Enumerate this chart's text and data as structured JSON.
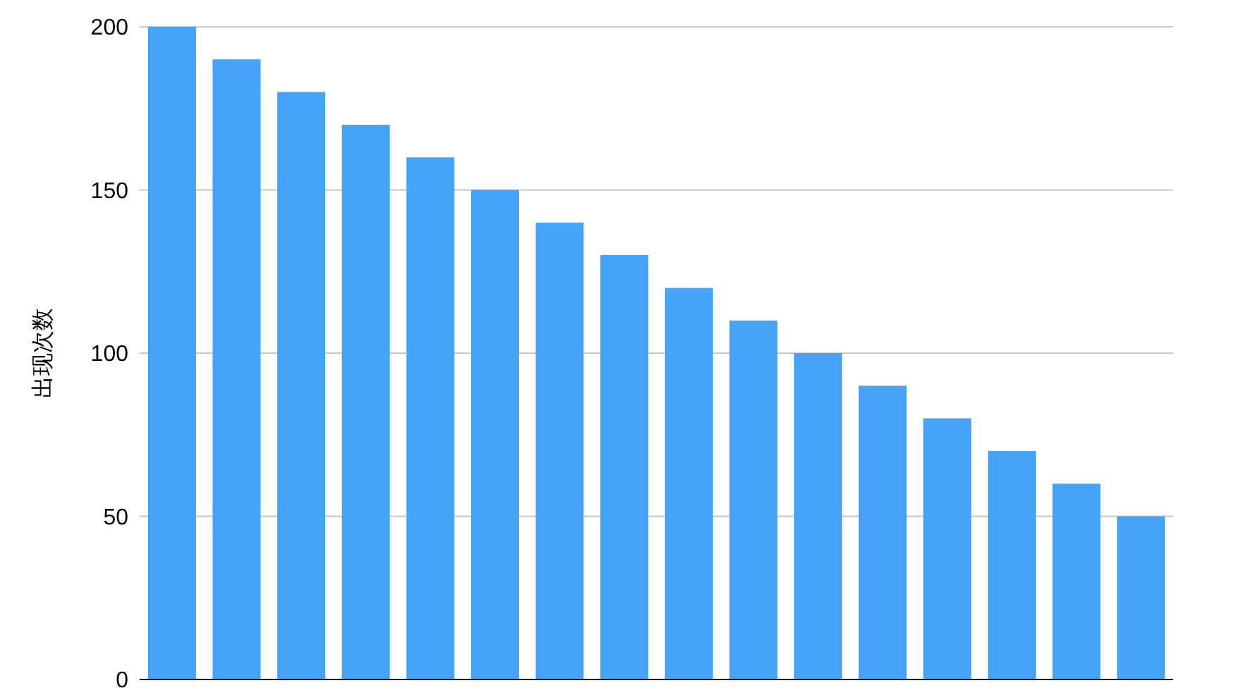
{
  "chart_data": {
    "type": "bar",
    "ylabel": "出现次数",
    "categories": [
      null,
      null,
      null,
      null,
      null,
      null,
      null,
      null,
      null,
      null,
      null,
      null,
      null,
      null,
      null,
      null
    ],
    "values": [
      200,
      190,
      180,
      170,
      160,
      150,
      140,
      130,
      120,
      110,
      100,
      90,
      80,
      70,
      60,
      50
    ],
    "color": "#47a3f8",
    "ylim": [
      0,
      200
    ],
    "yticks": [
      0,
      50,
      100,
      150,
      200
    ],
    "grid": "y"
  }
}
